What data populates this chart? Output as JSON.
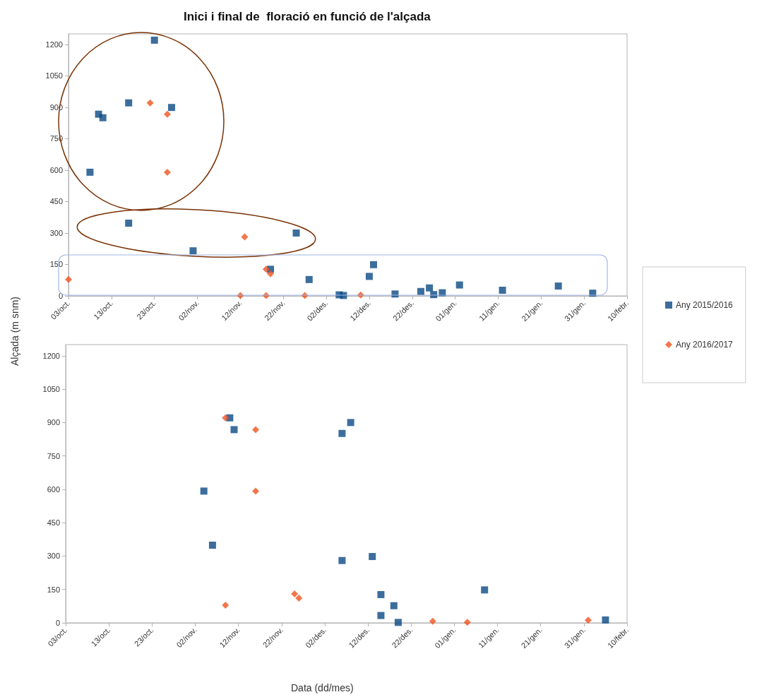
{
  "chart_data": [
    {
      "type": "scatter",
      "title": "Inici i final de  floració en funció de l'alçada",
      "ylabel": "Alçada (m snm)",
      "legend": "right",
      "grid": false,
      "xlim": [
        "2015-10-03",
        "2016-02-10"
      ],
      "xticks": [
        {
          "value": "2015-10-03",
          "label": "03/oct."
        },
        {
          "value": "2015-10-13",
          "label": "13/oct."
        },
        {
          "value": "2015-10-23",
          "label": "23/oct."
        },
        {
          "value": "2015-11-02",
          "label": "02/nov."
        },
        {
          "value": "2015-11-12",
          "label": "12/nov."
        },
        {
          "value": "2015-11-22",
          "label": "22/nov."
        },
        {
          "value": "2015-12-02",
          "label": "02/des."
        },
        {
          "value": "2015-12-12",
          "label": "12/des."
        },
        {
          "value": "2015-12-22",
          "label": "22/des."
        },
        {
          "value": "2016-01-01",
          "label": "01/gen."
        },
        {
          "value": "2016-01-11",
          "label": "11/gen."
        },
        {
          "value": "2016-01-21",
          "label": "21/gen."
        },
        {
          "value": "2016-01-31",
          "label": "31/gen."
        },
        {
          "value": "2016-02-10",
          "label": "10/febr."
        }
      ],
      "ylim": [
        0,
        1250
      ],
      "yticks": [
        0,
        150,
        300,
        450,
        600,
        750,
        900,
        1050,
        1200
      ],
      "series": [
        {
          "name": "Any 2015/2016",
          "color": "#0b4a85",
          "marker": "square",
          "x": [
            "2015-10-08",
            "2015-10-10",
            "2015-10-11",
            "2015-10-17",
            "2015-10-23",
            "2015-10-27",
            "2015-10-17",
            "2015-11-01",
            "2015-11-25",
            "2015-11-19",
            "2015-11-28",
            "2015-12-05",
            "2015-12-06",
            "2015-12-12",
            "2015-12-13",
            "2015-12-18",
            "2015-12-24",
            "2015-12-26",
            "2015-12-27",
            "2015-12-29",
            "2016-01-02",
            "2016-01-12",
            "2016-01-25",
            "2016-02-02"
          ],
          "values": [
            590,
            867,
            850,
            921,
            1220,
            899,
            347,
            215,
            300,
            127,
            78,
            5,
            2,
            93,
            149,
            9,
            21,
            38,
            6,
            15,
            52,
            27,
            47,
            13
          ]
        },
        {
          "name": "Any 2016/2017",
          "color": "#f0541f",
          "marker": "diamond",
          "x": [
            "2015-10-03",
            "2015-10-22",
            "2015-10-26",
            "2015-10-26",
            "2015-11-13",
            "2015-11-12",
            "2015-11-18",
            "2015-11-18",
            "2015-11-19",
            "2015-11-27",
            "2015-12-10"
          ],
          "values": [
            78,
            921,
            867,
            590,
            281,
            2,
            2,
            127,
            105,
            2,
            4
          ]
        }
      ]
    },
    {
      "type": "scatter",
      "xlabel": "Data (dd/mes)",
      "grid": false,
      "xlim": [
        "2015-10-03",
        "2016-02-10"
      ],
      "xticks": [
        {
          "value": "2015-10-03",
          "label": "03/oct."
        },
        {
          "value": "2015-10-13",
          "label": "13/oct."
        },
        {
          "value": "2015-10-23",
          "label": "23/oct."
        },
        {
          "value": "2015-11-02",
          "label": "02/nov."
        },
        {
          "value": "2015-11-12",
          "label": "12/nov."
        },
        {
          "value": "2015-11-22",
          "label": "22/nov."
        },
        {
          "value": "2015-12-02",
          "label": "02/des."
        },
        {
          "value": "2015-12-12",
          "label": "12/des."
        },
        {
          "value": "2015-12-22",
          "label": "22/des."
        },
        {
          "value": "2016-01-01",
          "label": "01/gen."
        },
        {
          "value": "2016-01-11",
          "label": "11/gen."
        },
        {
          "value": "2016-01-21",
          "label": "21/gen."
        },
        {
          "value": "2016-01-31",
          "label": "31/gen."
        },
        {
          "value": "2016-02-10",
          "label": "10/febr."
        }
      ],
      "ylim": [
        0,
        1250
      ],
      "yticks": [
        0,
        150,
        300,
        450,
        600,
        750,
        900,
        1050,
        1200
      ],
      "series": [
        {
          "color": "#0b4a85",
          "marker": "square",
          "x": [
            "2015-11-04",
            "2015-11-06",
            "2015-11-10",
            "2015-11-11",
            "2015-12-06",
            "2015-12-08",
            "2015-12-06",
            "2015-12-13",
            "2015-12-15",
            "2015-12-15",
            "2015-12-18",
            "2015-12-19",
            "2016-01-08",
            "2016-02-05"
          ],
          "values": [
            592,
            349,
            921,
            868,
            851,
            900,
            280,
            298,
            127,
            33,
            77,
            2,
            148,
            13
          ]
        },
        {
          "color": "#f0541f",
          "marker": "diamond",
          "x": [
            "2015-11-09",
            "2015-11-09",
            "2015-11-16",
            "2015-11-16",
            "2015-11-25",
            "2015-11-26",
            "2015-12-27",
            "2016-01-04",
            "2016-02-01"
          ],
          "values": [
            921,
            79,
            868,
            592,
            130,
            111,
            7,
            2,
            12
          ]
        }
      ]
    }
  ]
}
